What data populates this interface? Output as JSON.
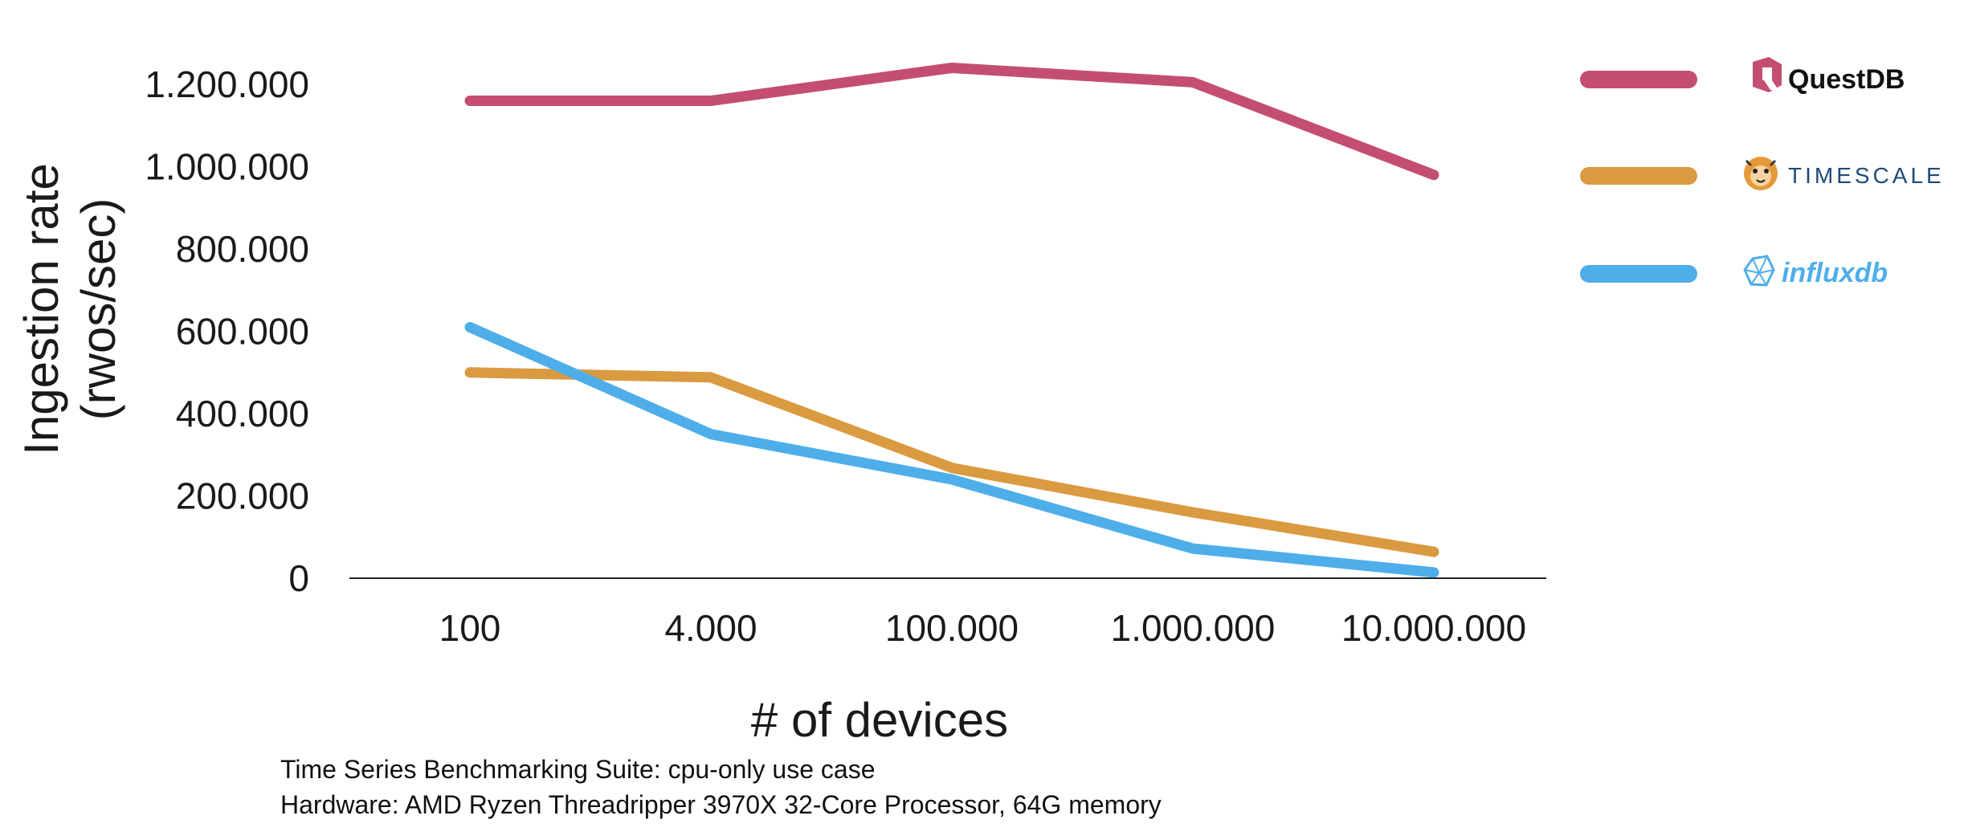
{
  "chart_data": {
    "type": "line",
    "categories": [
      "100",
      "4.000",
      "100.000",
      "1.000.000",
      "10.000.000"
    ],
    "series": [
      {
        "name": "QuestDB",
        "color": "#c44e71",
        "values": [
          1160000,
          1160000,
          1240000,
          1205000,
          980000
        ]
      },
      {
        "name": "TIMESCALE",
        "color": "#d99a40",
        "values": [
          500000,
          488000,
          268000,
          160000,
          64000
        ]
      },
      {
        "name": "influxdb",
        "color": "#4eaeea",
        "values": [
          610000,
          350000,
          240000,
          72000,
          14000
        ]
      }
    ],
    "yticks": [
      "0",
      "200.000",
      "400.000",
      "600.000",
      "800.000",
      "1.000.000",
      "1.200.000"
    ],
    "ytick_values": [
      0,
      200000,
      400000,
      600000,
      800000,
      1000000,
      1200000
    ],
    "ylim": [
      0,
      1200000
    ],
    "ylabel_lines": [
      "Ingestion rate",
      "(rwos/sec)"
    ],
    "xlabel": "# of devices",
    "grid": false,
    "legend_position": "right",
    "legend_logos": [
      "questdb-logo",
      "timescale-tiger-logo",
      "influxdb-logo"
    ]
  },
  "footnotes": [
    "Time Series Benchmarking Suite: cpu-only use case",
    "Hardware: AMD Ryzen Threadripper 3970X 32-Core Processor, 64G memory"
  ]
}
